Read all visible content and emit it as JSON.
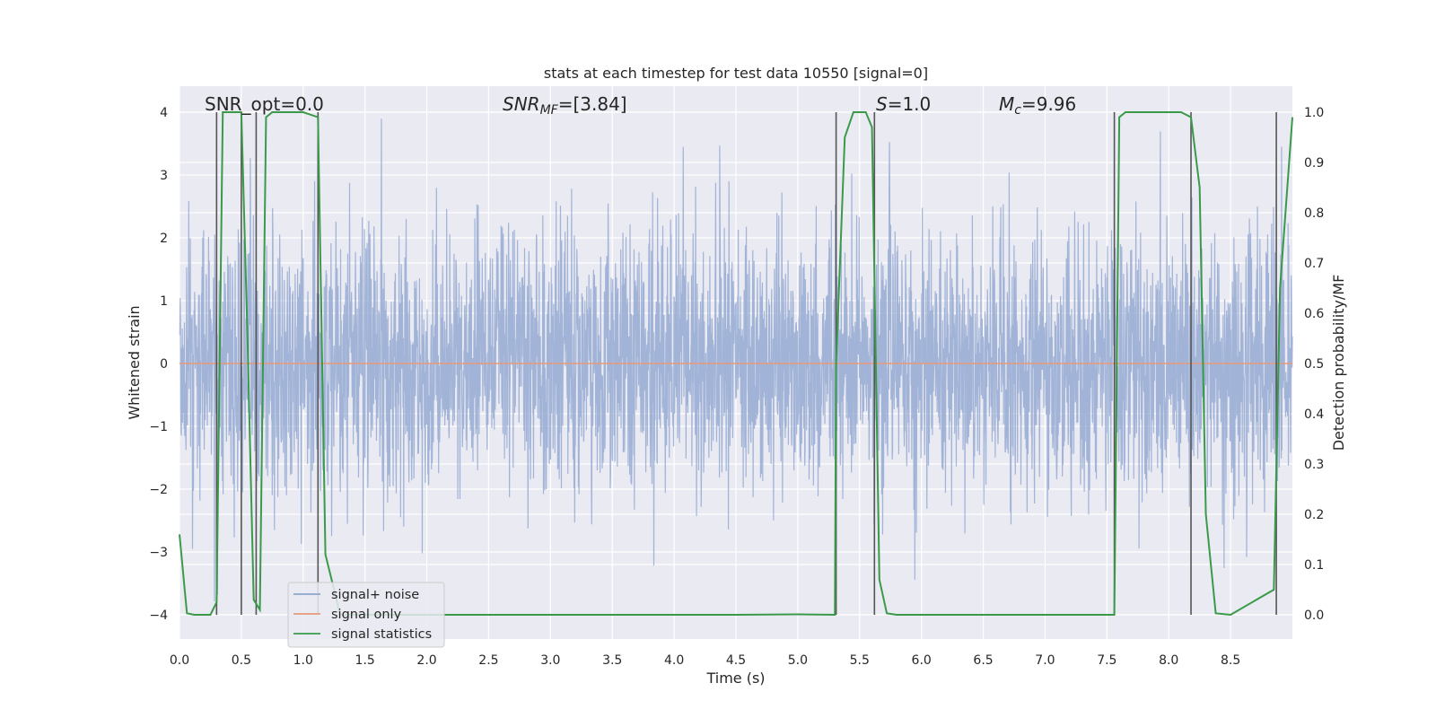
{
  "chart_data": {
    "type": "line",
    "title": "stats at each timestep for test data 10550 [signal=0]",
    "xlabel": "Time (s)",
    "ylabel_left": "Whitened strain",
    "ylabel_right": "Detection probability/MF",
    "xlim": [
      0.0,
      9.0
    ],
    "ylim_left": [
      -4.35,
      4.4
    ],
    "ylim_right": [
      0.0,
      1.0
    ],
    "x_ticks": [
      "0.0",
      "0.5",
      "1.0",
      "1.5",
      "2.0",
      "2.5",
      "3.0",
      "3.5",
      "4.0",
      "4.5",
      "5.0",
      "5.5",
      "6.0",
      "6.5",
      "7.0",
      "7.5",
      "8.0",
      "8.5"
    ],
    "y_ticks_left": [
      "4",
      "3",
      "2",
      "1",
      "0",
      "−1",
      "−2",
      "−3",
      "−4"
    ],
    "y_ticks_right": [
      "1.0",
      "0.9",
      "0.8",
      "0.7",
      "0.6",
      "0.5",
      "0.4",
      "0.3",
      "0.2",
      "0.1",
      "0.0"
    ],
    "grid": true,
    "legend_position": "lower-left",
    "annotations": {
      "snr_opt": "SNR_opt=0.0",
      "snr_mf_label": "SNR",
      "snr_mf_sub": "MF",
      "snr_mf_value": "=[3.84]",
      "s_label": "S",
      "s_value": "=1.0",
      "mc_label": "M",
      "mc_sub": "c",
      "mc_value": "=9.96"
    },
    "series": [
      {
        "name": "signal+ noise",
        "color": "#8fa5cf",
        "axis": "left",
        "description_stats": {
          "mean": 0.0,
          "std": 1.0,
          "min": -3.8,
          "max": 4.0
        }
      },
      {
        "name": "signal only",
        "color": "#e69a7a",
        "axis": "left",
        "x": [
          0.0,
          9.0
        ],
        "y": [
          0.0,
          0.0
        ]
      },
      {
        "name": "signal statistics",
        "color": "#3a9a4a",
        "axis": "right",
        "x": [
          0.0,
          0.06,
          0.12,
          0.25,
          0.3,
          0.35,
          0.4,
          0.45,
          0.5,
          0.55,
          0.6,
          0.65,
          0.7,
          0.75,
          0.8,
          1.0,
          1.12,
          1.18,
          1.3,
          1.5,
          2.0,
          3.0,
          4.0,
          4.5,
          5.0,
          5.3,
          5.31,
          5.38,
          5.45,
          5.55,
          5.6,
          5.66,
          5.72,
          5.8,
          6.0,
          7.0,
          7.56,
          7.6,
          7.65,
          8.0,
          8.1,
          8.18,
          8.25,
          8.3,
          8.38,
          8.5,
          8.85,
          8.9,
          9.0
        ],
        "y": [
          0.16,
          0.003,
          0.0,
          0.0,
          0.025,
          1.0,
          1.0,
          1.0,
          1.0,
          0.55,
          0.03,
          0.01,
          0.99,
          1.0,
          1.0,
          1.0,
          0.99,
          0.12,
          0.0,
          0.0,
          0.0,
          0.0,
          0.0,
          0.0,
          0.001,
          0.0,
          0.5,
          0.95,
          1.0,
          1.0,
          0.97,
          0.07,
          0.003,
          0.0,
          0.0,
          0.0,
          0.0,
          0.99,
          1.0,
          1.0,
          1.0,
          0.99,
          0.85,
          0.2,
          0.003,
          0.0,
          0.05,
          0.65,
          0.99
        ]
      }
    ],
    "vertical_lines": {
      "color": "#555555",
      "x": [
        0.3,
        0.5,
        0.62,
        1.12,
        5.31,
        5.62,
        7.56,
        8.18,
        8.87
      ]
    },
    "background_color": "#eaeaf2"
  }
}
